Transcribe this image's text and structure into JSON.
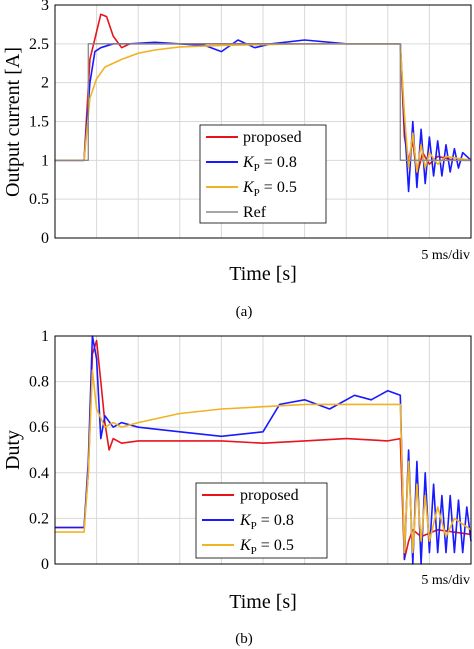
{
  "chart_data": [
    {
      "type": "line",
      "panel_caption": "(a)",
      "xlabel": "Time [s]",
      "ylabel": "Output current [A]",
      "x_scale_note": "5 ms/div",
      "x_unit": "ms",
      "xlim": [
        0,
        50
      ],
      "ylim": [
        0,
        3
      ],
      "yticks": [
        "0",
        "0.5",
        "1",
        "1.5",
        "2",
        "2.5",
        "3"
      ],
      "grid": true,
      "legend_position": "lower-center",
      "series": [
        {
          "name": "proposed",
          "color": "#e8141c",
          "x": [
            0,
            3.5,
            4.2,
            5.5,
            6.2,
            7,
            8,
            9,
            12,
            20,
            30,
            39,
            41.5,
            42,
            42.5,
            43,
            43.5,
            44.2,
            45,
            46,
            48,
            50
          ],
          "y": [
            1.0,
            1.0,
            2.3,
            2.88,
            2.85,
            2.6,
            2.45,
            2.5,
            2.5,
            2.5,
            2.5,
            2.5,
            2.5,
            1.3,
            1.0,
            1.25,
            0.8,
            1.1,
            0.95,
            1.05,
            1.0,
            1.0
          ]
        },
        {
          "name": "K_P = 0.8",
          "legend_parts": [
            "K",
            "P",
            " = 0.8"
          ],
          "color": "#1a1aff",
          "x": [
            0,
            3.5,
            4.2,
            4.8,
            5.5,
            7,
            9,
            12,
            18,
            20,
            22,
            24,
            26,
            30,
            35,
            40,
            41.5,
            42,
            42.5,
            43,
            43.5,
            44,
            44.5,
            45,
            45.5,
            46,
            46.5,
            47,
            47.5,
            48,
            48.5,
            49,
            50
          ],
          "y": [
            1.0,
            1.0,
            2.0,
            2.4,
            2.45,
            2.5,
            2.5,
            2.52,
            2.48,
            2.4,
            2.55,
            2.45,
            2.5,
            2.55,
            2.5,
            2.5,
            2.5,
            1.5,
            0.6,
            1.5,
            0.65,
            1.4,
            0.7,
            1.3,
            0.8,
            1.25,
            0.8,
            1.2,
            0.85,
            1.15,
            0.9,
            1.1,
            1.0
          ]
        },
        {
          "name": "K_P = 0.5",
          "legend_parts": [
            "K",
            "P",
            " = 0.5"
          ],
          "color": "#f0b323",
          "x": [
            0,
            3.5,
            4.2,
            5,
            6,
            8,
            10,
            12,
            15,
            20,
            30,
            41.5,
            42,
            42.5,
            43,
            43.5,
            44,
            44.5,
            45,
            46,
            47,
            50
          ],
          "y": [
            1.0,
            1.0,
            1.8,
            2.05,
            2.2,
            2.3,
            2.38,
            2.42,
            2.46,
            2.48,
            2.5,
            2.5,
            1.6,
            0.9,
            1.35,
            0.85,
            1.2,
            0.9,
            1.1,
            0.95,
            1.05,
            1.0
          ]
        },
        {
          "name": "Ref",
          "color": "#888888",
          "x": [
            0,
            4,
            4,
            41.5,
            41.5,
            50
          ],
          "y": [
            1.0,
            1.0,
            2.5,
            2.5,
            1.0,
            1.0
          ]
        }
      ]
    },
    {
      "type": "line",
      "panel_caption": "(b)",
      "xlabel": "Time [s]",
      "ylabel": "Duty",
      "x_scale_note": "5 ms/div",
      "x_unit": "ms",
      "xlim": [
        0,
        50
      ],
      "ylim": [
        0,
        1
      ],
      "yticks": [
        "0",
        "0.2",
        "0.4",
        "0.6",
        "0.8",
        "1"
      ],
      "grid": true,
      "legend_position": "lower-center",
      "series": [
        {
          "name": "proposed",
          "color": "#e8141c",
          "x": [
            0,
            3.5,
            4,
            4.5,
            5,
            5.5,
            6,
            6.5,
            7,
            8,
            10,
            15,
            20,
            25,
            30,
            35,
            40,
            41.5,
            42,
            42.5,
            43,
            44,
            46,
            50
          ],
          "y": [
            0.16,
            0.16,
            0.4,
            0.92,
            0.98,
            0.8,
            0.62,
            0.5,
            0.55,
            0.53,
            0.54,
            0.54,
            0.54,
            0.53,
            0.54,
            0.55,
            0.54,
            0.55,
            0.02,
            0.1,
            0.15,
            0.12,
            0.15,
            0.13
          ]
        },
        {
          "name": "K_P = 0.8",
          "legend_parts": [
            "K",
            "P",
            " = 0.8"
          ],
          "color": "#1a1aff",
          "x": [
            0,
            3.5,
            4,
            4.5,
            5,
            5.5,
            6,
            7,
            8,
            10,
            15,
            20,
            25,
            27,
            30,
            33,
            36,
            38,
            40,
            41.5,
            42,
            42.5,
            43,
            43.5,
            44,
            44.5,
            45,
            45.5,
            46,
            46.5,
            47,
            47.5,
            48,
            48.5,
            49,
            49.5,
            50
          ],
          "y": [
            0.16,
            0.16,
            0.45,
            1.0,
            0.9,
            0.55,
            0.65,
            0.6,
            0.62,
            0.6,
            0.58,
            0.56,
            0.58,
            0.7,
            0.72,
            0.68,
            0.74,
            0.72,
            0.76,
            0.74,
            0.02,
            0.5,
            0.0,
            0.45,
            0.0,
            0.4,
            0.05,
            0.35,
            0.05,
            0.3,
            0.05,
            0.3,
            0.05,
            0.28,
            0.05,
            0.25,
            0.1
          ]
        },
        {
          "name": "K_P = 0.5",
          "legend_parts": [
            "K",
            "P",
            " = 0.5"
          ],
          "color": "#f0b323",
          "x": [
            0,
            3.5,
            4,
            4.5,
            5,
            6,
            7,
            8,
            10,
            15,
            20,
            25,
            30,
            35,
            40,
            41.5,
            42,
            42.5,
            43,
            43.5,
            44,
            44.5,
            45,
            46,
            47,
            48,
            50
          ],
          "y": [
            0.14,
            0.14,
            0.4,
            0.85,
            0.68,
            0.6,
            0.62,
            0.6,
            0.62,
            0.66,
            0.68,
            0.69,
            0.7,
            0.7,
            0.7,
            0.7,
            0.05,
            0.45,
            0.05,
            0.35,
            0.1,
            0.3,
            0.1,
            0.25,
            0.12,
            0.2,
            0.15
          ]
        }
      ]
    }
  ]
}
